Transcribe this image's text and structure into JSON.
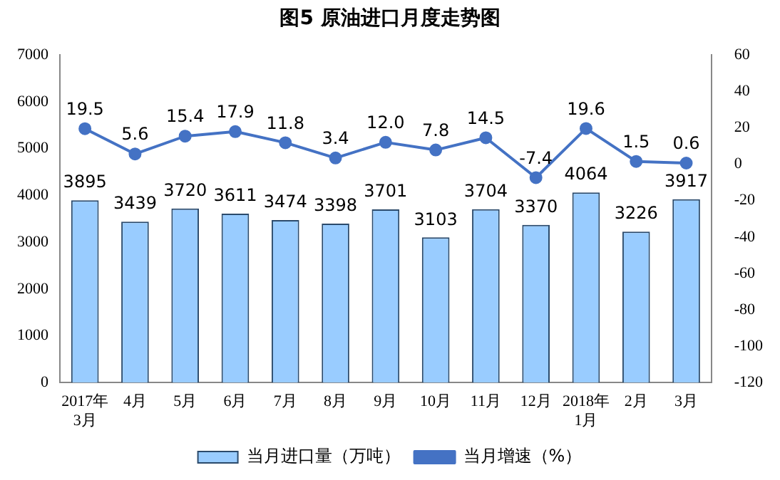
{
  "chart_data": {
    "type": "bar",
    "title": "图5  原油进口月度走势图",
    "categories": [
      "2017年\n3月",
      "4月",
      "5月",
      "6月",
      "7月",
      "8月",
      "9月",
      "10月",
      "11月",
      "12月",
      "2018年\n1月",
      "2月",
      "3月"
    ],
    "series": [
      {
        "name": "当月进口量（万吨）",
        "color": "#99ccff",
        "values": [
          3895,
          3439,
          3720,
          3611,
          3474,
          3398,
          3701,
          3103,
          3704,
          3370,
          4064,
          3226,
          3917
        ]
      },
      {
        "name": "当月增速（%）",
        "type": "line",
        "axis": "y2",
        "color": "#4472c4",
        "marker": "circle",
        "values": [
          19.5,
          5.6,
          15.4,
          17.9,
          11.8,
          3.4,
          12.0,
          7.8,
          14.5,
          -7.4,
          19.6,
          1.5,
          0.6
        ],
        "value_labels": [
          "19.5",
          "5.6",
          "15.4",
          "17.9",
          "11.8",
          "3.4",
          "12.0",
          "7.8",
          "14.5",
          "-7.4",
          "19.6",
          "1.5",
          "0.6"
        ]
      }
    ],
    "ylim": [
      0,
      7000
    ],
    "yticks": [
      0,
      1000,
      2000,
      3000,
      4000,
      5000,
      6000,
      7000
    ],
    "y2lim": [
      -120,
      60
    ],
    "y2ticks": [
      -120,
      -100,
      -80,
      -60,
      -40,
      -20,
      0,
      20,
      40,
      60
    ],
    "data_labels": true,
    "grid": false,
    "legend": "bottom"
  }
}
